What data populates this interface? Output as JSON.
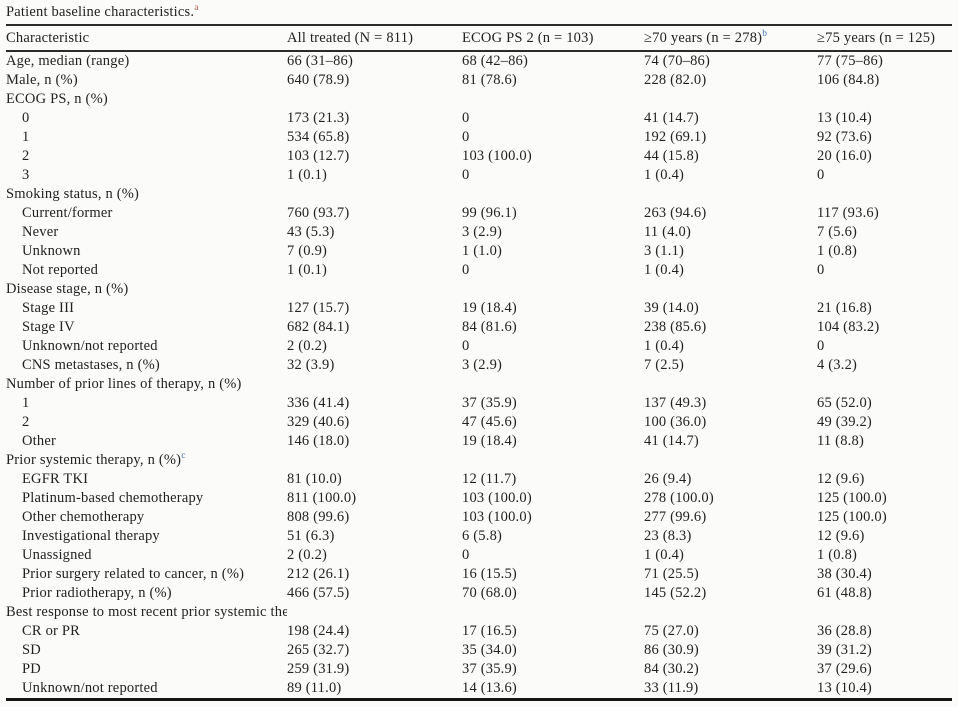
{
  "title": {
    "text": "Patient baseline characteristics.",
    "footnote": "a"
  },
  "table": {
    "columns": [
      {
        "label": "Characteristic",
        "footnote": ""
      },
      {
        "label": "All treated (N = 811)",
        "footnote": ""
      },
      {
        "label": "ECOG PS 2 (n = 103)",
        "footnote": ""
      },
      {
        "label": "≥70 years (n = 278)",
        "footnote": "b"
      },
      {
        "label": "≥75 years (n = 125)",
        "footnote": ""
      }
    ],
    "rows": [
      {
        "label": "Age, median (range)",
        "indent": 0,
        "footnote": "",
        "values": [
          "66 (31–86)",
          "68 (42–86)",
          "74 (70–86)",
          "77 (75–86)"
        ]
      },
      {
        "label": "Male, n (%)",
        "indent": 0,
        "footnote": "",
        "values": [
          "640 (78.9)",
          "81 (78.6)",
          "228 (82.0)",
          "106 (84.8)"
        ]
      },
      {
        "label": "ECOG PS, n (%)",
        "indent": 0,
        "footnote": "",
        "values": [
          "",
          "",
          "",
          ""
        ]
      },
      {
        "label": "0",
        "indent": 1,
        "footnote": "",
        "values": [
          "173 (21.3)",
          "0",
          "41 (14.7)",
          "13 (10.4)"
        ]
      },
      {
        "label": "1",
        "indent": 1,
        "footnote": "",
        "values": [
          "534 (65.8)",
          "0",
          "192 (69.1)",
          "92 (73.6)"
        ]
      },
      {
        "label": "2",
        "indent": 1,
        "footnote": "",
        "values": [
          "103 (12.7)",
          "103 (100.0)",
          "44 (15.8)",
          "20 (16.0)"
        ]
      },
      {
        "label": "3",
        "indent": 1,
        "footnote": "",
        "values": [
          "1 (0.1)",
          "0",
          "1 (0.4)",
          "0"
        ]
      },
      {
        "label": "Smoking status, n (%)",
        "indent": 0,
        "footnote": "",
        "values": [
          "",
          "",
          "",
          ""
        ]
      },
      {
        "label": "Current/former",
        "indent": 1,
        "footnote": "",
        "values": [
          "760 (93.7)",
          "99 (96.1)",
          "263 (94.6)",
          "117 (93.6)"
        ]
      },
      {
        "label": "Never",
        "indent": 1,
        "footnote": "",
        "values": [
          "43 (5.3)",
          "3 (2.9)",
          "11 (4.0)",
          "7 (5.6)"
        ]
      },
      {
        "label": "Unknown",
        "indent": 1,
        "footnote": "",
        "values": [
          "7 (0.9)",
          "1 (1.0)",
          "3 (1.1)",
          "1 (0.8)"
        ]
      },
      {
        "label": "Not reported",
        "indent": 1,
        "footnote": "",
        "values": [
          "1 (0.1)",
          "0",
          "1 (0.4)",
          "0"
        ]
      },
      {
        "label": "Disease stage, n (%)",
        "indent": 0,
        "footnote": "",
        "values": [
          "",
          "",
          "",
          ""
        ]
      },
      {
        "label": "Stage III",
        "indent": 1,
        "footnote": "",
        "values": [
          "127 (15.7)",
          "19 (18.4)",
          "39 (14.0)",
          "21 (16.8)"
        ]
      },
      {
        "label": "Stage IV",
        "indent": 1,
        "footnote": "",
        "values": [
          "682 (84.1)",
          "84 (81.6)",
          "238 (85.6)",
          "104 (83.2)"
        ]
      },
      {
        "label": "Unknown/not reported",
        "indent": 1,
        "footnote": "",
        "values": [
          "2 (0.2)",
          "0",
          "1 (0.4)",
          "0"
        ]
      },
      {
        "label": "CNS metastases, n (%)",
        "indent": 1,
        "footnote": "",
        "values": [
          "32 (3.9)",
          "3 (2.9)",
          "7 (2.5)",
          "4 (3.2)"
        ]
      },
      {
        "label": "Number of prior lines of therapy, n (%)",
        "indent": 0,
        "footnote": "",
        "values": [
          "",
          "",
          "",
          ""
        ]
      },
      {
        "label": "1",
        "indent": 1,
        "footnote": "",
        "values": [
          "336 (41.4)",
          "37 (35.9)",
          "137 (49.3)",
          "65 (52.0)"
        ]
      },
      {
        "label": "2",
        "indent": 1,
        "footnote": "",
        "values": [
          "329 (40.6)",
          "47 (45.6)",
          "100 (36.0)",
          "49 (39.2)"
        ]
      },
      {
        "label": "Other",
        "indent": 1,
        "footnote": "",
        "values": [
          "146 (18.0)",
          "19 (18.4)",
          "41 (14.7)",
          "11 (8.8)"
        ]
      },
      {
        "label": "Prior systemic therapy, n (%)",
        "indent": 0,
        "footnote": "c",
        "values": [
          "",
          "",
          "",
          ""
        ]
      },
      {
        "label": "EGFR TKI",
        "indent": 1,
        "footnote": "",
        "values": [
          "81 (10.0)",
          "12 (11.7)",
          "26 (9.4)",
          "12 (9.6)"
        ]
      },
      {
        "label": "Platinum-based chemotherapy",
        "indent": 1,
        "footnote": "",
        "values": [
          "811 (100.0)",
          "103 (100.0)",
          "278 (100.0)",
          "125 (100.0)"
        ]
      },
      {
        "label": "Other chemotherapy",
        "indent": 1,
        "footnote": "",
        "values": [
          "808 (99.6)",
          "103 (100.0)",
          "277 (99.6)",
          "125 (100.0)"
        ]
      },
      {
        "label": "Investigational therapy",
        "indent": 1,
        "footnote": "",
        "values": [
          "51 (6.3)",
          "6 (5.8)",
          "23 (8.3)",
          "12 (9.6)"
        ]
      },
      {
        "label": "Unassigned",
        "indent": 1,
        "footnote": "",
        "values": [
          "2 (0.2)",
          "0",
          "1 (0.4)",
          "1 (0.8)"
        ]
      },
      {
        "label": "Prior surgery related to cancer, n (%)",
        "indent": 1,
        "footnote": "",
        "values": [
          "212 (26.1)",
          "16 (15.5)",
          "71 (25.5)",
          "38 (30.4)"
        ]
      },
      {
        "label": "Prior radiotherapy, n (%)",
        "indent": 1,
        "footnote": "",
        "values": [
          "466 (57.5)",
          "70 (68.0)",
          "145 (52.2)",
          "61 (48.8)"
        ]
      },
      {
        "label": "Best response to most recent prior systemic therapy, n (%)",
        "indent": 0,
        "footnote": "",
        "values": [
          "",
          "",
          "",
          ""
        ]
      },
      {
        "label": "CR or PR",
        "indent": 1,
        "footnote": "",
        "values": [
          "198 (24.4)",
          "17 (16.5)",
          "75 (27.0)",
          "36 (28.8)"
        ]
      },
      {
        "label": "SD",
        "indent": 1,
        "footnote": "",
        "values": [
          "265 (32.7)",
          "35 (34.0)",
          "86 (30.9)",
          "39 (31.2)"
        ]
      },
      {
        "label": "PD",
        "indent": 1,
        "footnote": "",
        "values": [
          "259 (31.9)",
          "37 (35.9)",
          "84 (30.2)",
          "37 (29.6)"
        ]
      },
      {
        "label": "Unknown/not reported",
        "indent": 1,
        "footnote": "",
        "values": [
          "89 (11.0)",
          "14 (13.6)",
          "33 (11.9)",
          "13 (10.4)"
        ]
      }
    ]
  }
}
